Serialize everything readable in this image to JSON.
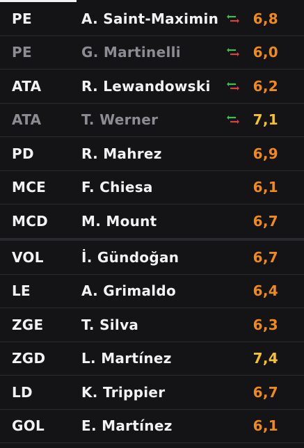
{
  "lineup": [
    {
      "position": "PE",
      "player": "A. Saint-Maximin",
      "rating": "6,8",
      "subbed": false,
      "sub_icon": true,
      "rating_level": "normal"
    },
    {
      "position": "PE",
      "player": "G. Martinelli",
      "rating": "6,0",
      "subbed": true,
      "sub_icon": true,
      "rating_level": "normal"
    },
    {
      "position": "ATA",
      "player": "R. Lewandowski",
      "rating": "6,2",
      "subbed": false,
      "sub_icon": true,
      "rating_level": "normal"
    },
    {
      "position": "ATA",
      "player": "T. Werner",
      "rating": "7,1",
      "subbed": true,
      "sub_icon": true,
      "rating_level": "high"
    },
    {
      "position": "PD",
      "player": "R. Mahrez",
      "rating": "6,9",
      "subbed": false,
      "sub_icon": false,
      "rating_level": "normal"
    },
    {
      "position": "MCE",
      "player": "F. Chiesa",
      "rating": "6,1",
      "subbed": false,
      "sub_icon": false,
      "rating_level": "normal"
    },
    {
      "position": "MCD",
      "player": "M. Mount",
      "rating": "6,7",
      "subbed": false,
      "sub_icon": false,
      "rating_level": "normal"
    },
    {
      "position": "VOL",
      "player": "İ. Gündoğan",
      "rating": "6,7",
      "subbed": false,
      "sub_icon": false,
      "rating_level": "normal"
    },
    {
      "position": "LE",
      "player": "A. Grimaldo",
      "rating": "6,4",
      "subbed": false,
      "sub_icon": false,
      "rating_level": "normal"
    },
    {
      "position": "ZGE",
      "player": "T. Silva",
      "rating": "6,3",
      "subbed": false,
      "sub_icon": false,
      "rating_level": "normal"
    },
    {
      "position": "ZGD",
      "player": "L. Martínez",
      "rating": "7,4",
      "subbed": false,
      "sub_icon": false,
      "rating_level": "high"
    },
    {
      "position": "LD",
      "player": "K. Trippier",
      "rating": "6,7",
      "subbed": false,
      "sub_icon": false,
      "rating_level": "normal"
    },
    {
      "position": "GOL",
      "player": "E. Martínez",
      "rating": "6,1",
      "subbed": false,
      "sub_icon": false,
      "rating_level": "normal"
    }
  ],
  "colors": {
    "background": "#141416",
    "text": "#f2f2f2",
    "text_subbed": "#8c8c92",
    "rating_normal": "#f08a1c",
    "rating_high": "#f5c12e",
    "sub_arrow_in": "#3fbf5a",
    "sub_arrow_out": "#e0403a"
  },
  "icons": {
    "substitution": "substitution-arrows-icon"
  }
}
